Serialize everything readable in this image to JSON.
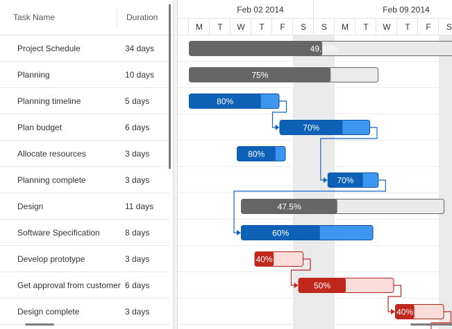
{
  "grid": {
    "columns": {
      "name": "Task Name",
      "duration": "Duration"
    },
    "rows": [
      {
        "name": "Project Schedule",
        "duration": "34 days"
      },
      {
        "name": "Planning",
        "duration": "10 days"
      },
      {
        "name": "Planning timeline",
        "duration": "5 days"
      },
      {
        "name": "Plan budget",
        "duration": "6 days"
      },
      {
        "name": "Allocate resources",
        "duration": "3 days"
      },
      {
        "name": "Planning complete",
        "duration": "3 days"
      },
      {
        "name": "Design",
        "duration": "11 days"
      },
      {
        "name": "Software Specification",
        "duration": "8 days"
      },
      {
        "name": "Develop prototype",
        "duration": "3 days"
      },
      {
        "name": "Get approval from customer",
        "duration": "6 days"
      },
      {
        "name": "Design complete",
        "duration": "3 days"
      }
    ]
  },
  "timeline": {
    "weeks": [
      "Feb 02 2014",
      "Feb 09 2014"
    ],
    "days": [
      "M",
      "T",
      "W",
      "T",
      "F",
      "S",
      "S",
      "M",
      "T",
      "W",
      "T",
      "F",
      "S"
    ]
  },
  "colors": {
    "summary_fill": "#666666",
    "summary_bg": "#eaeaea",
    "task_fill": "#0d62b8",
    "task_bg": "#3d97f0",
    "critical_fill": "#c2271d",
    "critical_bg": "#fadcda",
    "weekend_shade": "#eaeaea",
    "connector_blue": "#1166c4",
    "connector_red": "#c2271d"
  },
  "bars": [
    {
      "row": 0,
      "kind": "summary",
      "start_day": 0,
      "duration_days": 13.0,
      "percent": 0.4938,
      "label": "49.38%"
    },
    {
      "row": 1,
      "kind": "summary",
      "start_day": 0,
      "duration_days": 9.1,
      "percent": 0.75,
      "label": "75%"
    },
    {
      "row": 2,
      "kind": "task",
      "start_day": 0,
      "duration_days": 4.35,
      "percent": 0.8,
      "label": "80%"
    },
    {
      "row": 3,
      "kind": "task",
      "start_day": 4.35,
      "duration_days": 4.35,
      "percent": 0.7,
      "label": "70%"
    },
    {
      "row": 4,
      "kind": "task",
      "start_day": 2.3,
      "duration_days": 2.35,
      "percent": 0.8,
      "label": "80%"
    },
    {
      "row": 5,
      "kind": "task",
      "start_day": 6.66,
      "duration_days": 2.45,
      "percent": 0.7,
      "label": "70%"
    },
    {
      "row": 6,
      "kind": "summary",
      "start_day": 2.5,
      "duration_days": 9.77,
      "percent": 0.475,
      "label": "47.5%"
    },
    {
      "row": 7,
      "kind": "task",
      "start_day": 2.5,
      "duration_days": 6.35,
      "percent": 0.6,
      "label": "60%"
    },
    {
      "row": 8,
      "kind": "critical",
      "start_day": 3.15,
      "duration_days": 2.35,
      "percent": 0.4,
      "label": "40%"
    },
    {
      "row": 9,
      "kind": "critical",
      "start_day": 5.25,
      "duration_days": 4.6,
      "percent": 0.5,
      "label": "50%"
    },
    {
      "row": 10,
      "kind": "critical",
      "start_day": 9.9,
      "duration_days": 2.35,
      "percent": 0.4,
      "label": "40%"
    }
  ],
  "links": [
    {
      "from": 2,
      "to": 3,
      "color": "blue"
    },
    {
      "from": 3,
      "to": 5,
      "color": "blue"
    },
    {
      "from": 5,
      "to": 7,
      "color": "blue"
    },
    {
      "from": 8,
      "to": 9,
      "color": "red"
    },
    {
      "from": 9,
      "to": 10,
      "color": "red"
    },
    {
      "from": 10,
      "to": 11,
      "color": "red"
    }
  ]
}
